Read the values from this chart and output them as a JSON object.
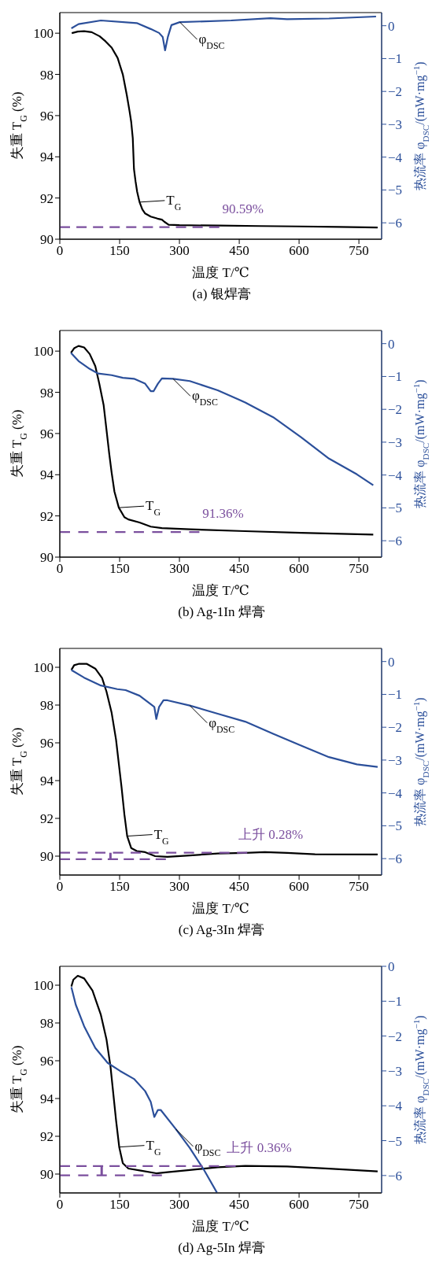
{
  "chart_data": [
    {
      "type": "line",
      "title": "(a) 银焊膏",
      "xlabel": "温度 T/℃",
      "ylabel": "失重 T$_{G}$ (%)",
      "y2label": "热流率 φ$_{DSC}$/(mW·mg$^{−1}$)",
      "xlim": [
        0,
        807
      ],
      "xticks": [
        0,
        150,
        300,
        450,
        600,
        750
      ],
      "ylim": [
        90,
        101
      ],
      "yticks": [
        90,
        92,
        94,
        96,
        98,
        100
      ],
      "y2lim": [
        -6.5,
        0.4
      ],
      "y2ticks": [
        -6,
        -5,
        -4,
        -3,
        -2,
        -1,
        0
      ],
      "marker": "none",
      "series": [
        {
          "name": "T$_{G}$",
          "color": "#000000",
          "line_style": "solid",
          "x": [
            30,
            45,
            61,
            80,
            100,
            115,
            130,
            145,
            158,
            168,
            175,
            179,
            183,
            186,
            190,
            194,
            200,
            207,
            214,
            228,
            245,
            256,
            262,
            273,
            300,
            400,
            500,
            600,
            700,
            797
          ],
          "values": [
            100,
            100.08,
            100.1,
            100.05,
            99.85,
            99.6,
            99.3,
            98.8,
            98.0,
            97.0,
            96.2,
            95.7,
            94.9,
            93.4,
            92.8,
            92.3,
            91.8,
            91.45,
            91.25,
            91.1,
            91.0,
            90.95,
            90.85,
            90.7,
            90.68,
            90.66,
            90.64,
            90.62,
            90.6,
            90.57
          ]
        },
        {
          "name": "φ$_{DSC}$",
          "color": "#2b4f9a",
          "line_style": "solid",
          "axis": "y2",
          "x": [
            29,
            47,
            103,
            193,
            228,
            249,
            258,
            264,
            271,
            280,
            301,
            430,
            528,
            570,
            675,
            793
          ],
          "values": [
            -0.08,
            0.05,
            0.16,
            0.08,
            -0.1,
            -0.22,
            -0.34,
            -0.75,
            -0.34,
            0.02,
            0.11,
            0.16,
            0.23,
            0.2,
            0.22,
            0.28
          ]
        },
        {
          "color": "#7b4f9e",
          "line_style": "dashed",
          "x": [
            0,
            400
          ],
          "values": [
            90.59,
            90.59
          ]
        }
      ],
      "annotations": [
        "90.59%"
      ]
    },
    {
      "type": "line",
      "title": "(b) Ag-1In 焊膏",
      "xlabel": "温度 T/℃",
      "ylabel": "失重 T$_{G}$ (%)",
      "y2label": "热流率 φ$_{DSC}$/(mW·mg$^{−1}$)",
      "xlim": [
        0,
        807
      ],
      "xticks": [
        0,
        150,
        300,
        450,
        600,
        750
      ],
      "ylim": [
        90,
        101
      ],
      "yticks": [
        90,
        92,
        94,
        96,
        98,
        100
      ],
      "y2lim": [
        -6.5,
        0.4
      ],
      "y2ticks": [
        -6,
        -5,
        -4,
        -3,
        -2,
        -1,
        0
      ],
      "marker": "none",
      "series": [
        {
          "name": "T$_{G}$",
          "color": "#000000",
          "line_style": "solid",
          "x": [
            28,
            36,
            47,
            61,
            75,
            89,
            99,
            110,
            117,
            124,
            130,
            137,
            148,
            162,
            172,
            200,
            228,
            256,
            326,
            465,
            605,
            786
          ],
          "values": [
            99.92,
            100.14,
            100.25,
            100.18,
            99.86,
            99.27,
            98.42,
            97.37,
            96.19,
            95.01,
            94.1,
            93.18,
            92.4,
            91.94,
            91.83,
            91.68,
            91.48,
            91.41,
            91.35,
            91.26,
            91.18,
            91.09
          ]
        },
        {
          "name": "φ$_{DSC}$",
          "color": "#2b4f9a",
          "line_style": "solid",
          "axis": "y2",
          "x": [
            28,
            47,
            75,
            96,
            130,
            158,
            186,
            214,
            228,
            235,
            246,
            256,
            284,
            326,
            396,
            465,
            535,
            605,
            675,
            745,
            786
          ],
          "values": [
            -0.28,
            -0.53,
            -0.77,
            -0.91,
            -0.96,
            -1.04,
            -1.07,
            -1.22,
            -1.45,
            -1.45,
            -1.22,
            -1.06,
            -1.07,
            -1.14,
            -1.42,
            -1.79,
            -2.24,
            -2.85,
            -3.5,
            -3.98,
            -4.31
          ]
        },
        {
          "color": "#7b4f9e",
          "line_style": "dashed",
          "x": [
            0,
            350
          ],
          "values": [
            91.22,
            91.22
          ]
        }
      ],
      "annotations": [
        "91.36%"
      ]
    },
    {
      "type": "line",
      "title": "(c) Ag-3In 焊膏",
      "xlabel": "温度 T/℃",
      "ylabel": "失重 T$_{G}$ (%)",
      "y2label": "热流率 φ$_{DSC}$/(mW·mg$^{−1}$)",
      "xlim": [
        0,
        807
      ],
      "xticks": [
        0,
        150,
        300,
        450,
        600,
        750
      ],
      "ylim": [
        89,
        101
      ],
      "yticks": [
        90,
        92,
        94,
        96,
        98,
        100
      ],
      "y2lim": [
        -6.5,
        0.4
      ],
      "y2ticks": [
        -6,
        -5,
        -4,
        -3,
        -2,
        -1,
        0
      ],
      "marker": "none",
      "series": [
        {
          "name": "T$_{G}$",
          "color": "#000000",
          "line_style": "solid",
          "x": [
            29,
            36,
            47,
            68,
            89,
            106,
            117,
            130,
            141,
            148,
            155,
            162,
            169,
            179,
            193,
            214,
            239,
            270,
            326,
            396,
            465,
            514,
            570,
            640,
            797
          ],
          "values": [
            99.86,
            100.11,
            100.18,
            100.18,
            99.93,
            99.43,
            98.72,
            97.59,
            96.17,
            94.89,
            93.62,
            92.2,
            91.06,
            90.43,
            90.27,
            90.21,
            90.0,
            89.96,
            90.04,
            90.14,
            90.17,
            90.21,
            90.17,
            90.1,
            90.09
          ]
        },
        {
          "name": "φ$_{DSC}$",
          "color": "#2b4f9a",
          "line_style": "solid",
          "axis": "y2",
          "x": [
            29,
            61,
            103,
            144,
            165,
            200,
            228,
            237,
            242,
            249,
            260,
            270,
            326,
            396,
            465,
            535,
            605,
            675,
            745,
            797
          ],
          "values": [
            -0.26,
            -0.49,
            -0.73,
            -0.84,
            -0.87,
            -1.04,
            -1.3,
            -1.38,
            -1.75,
            -1.38,
            -1.18,
            -1.18,
            -1.34,
            -1.59,
            -1.83,
            -2.2,
            -2.56,
            -2.91,
            -3.13,
            -3.21
          ]
        },
        {
          "color": "#7b4f9e",
          "line_style": "dashed",
          "x": [
            0,
            470
          ],
          "values": [
            90.18,
            90.18
          ]
        },
        {
          "color": "#7b4f9e",
          "line_style": "dashed",
          "x": [
            0,
            266
          ],
          "values": [
            89.84,
            89.84
          ]
        },
        {
          "color": "#7b4f9e",
          "line_style": "solid",
          "x": [
            127,
            127
          ],
          "values": [
            89.84,
            90.18
          ]
        }
      ],
      "annotations": [
        "上升 0.28%"
      ]
    },
    {
      "type": "line",
      "title": "(d) Ag-5In 焊膏",
      "xlabel": "温度 T/℃",
      "ylabel": "失重 T$_{G}$ (%)",
      "y2label": "热流率 φ$_{DSC}$/(mW·mg$^{−1}$)",
      "xlim": [
        0,
        807
      ],
      "xticks": [
        0,
        150,
        300,
        450,
        600,
        750
      ],
      "ylim": [
        89,
        101
      ],
      "yticks": [
        90,
        92,
        94,
        96,
        98,
        100
      ],
      "y2lim": [
        -6.5,
        0
      ],
      "y2ticks": [
        -6,
        -5,
        -4,
        -3,
        -2,
        -1,
        0
      ],
      "marker": "none",
      "series": [
        {
          "name": "T$_{G}$",
          "color": "#000000",
          "line_style": "solid",
          "x": [
            29,
            34,
            45,
            61,
            82,
            103,
            117,
            127,
            134,
            141,
            149,
            158,
            172,
            200,
            242,
            270,
            326,
            396,
            465,
            570,
            675,
            797
          ],
          "values": [
            99.93,
            100.29,
            100.5,
            100.36,
            99.71,
            98.43,
            97.14,
            95.71,
            94.29,
            92.86,
            91.43,
            90.57,
            90.29,
            90.19,
            90.04,
            90.1,
            90.21,
            90.36,
            90.43,
            90.4,
            90.29,
            90.14
          ]
        },
        {
          "name": "φ$_{DSC}$",
          "color": "#2b4f9a",
          "line_style": "solid",
          "axis": "y2",
          "x": [
            29,
            40,
            61,
            89,
            120,
            151,
            186,
            214,
            228,
            237,
            246,
            253,
            291,
            326,
            361,
            394
          ],
          "values": [
            -0.6,
            -1.1,
            -1.72,
            -2.34,
            -2.77,
            -3.0,
            -3.23,
            -3.58,
            -3.89,
            -4.32,
            -4.12,
            -4.12,
            -4.67,
            -5.21,
            -5.83,
            -6.49
          ]
        },
        {
          "color": "#7b4f9e",
          "line_style": "dashed",
          "x": [
            0,
            441
          ],
          "values": [
            90.42,
            90.42
          ]
        },
        {
          "color": "#7b4f9e",
          "line_style": "dashed",
          "x": [
            0,
            256
          ],
          "values": [
            89.93,
            89.93
          ]
        },
        {
          "color": "#7b4f9e",
          "line_style": "solid",
          "x": [
            105,
            105
          ],
          "values": [
            89.93,
            90.42
          ]
        }
      ],
      "annotations": [
        "上升 0.36%"
      ]
    }
  ]
}
